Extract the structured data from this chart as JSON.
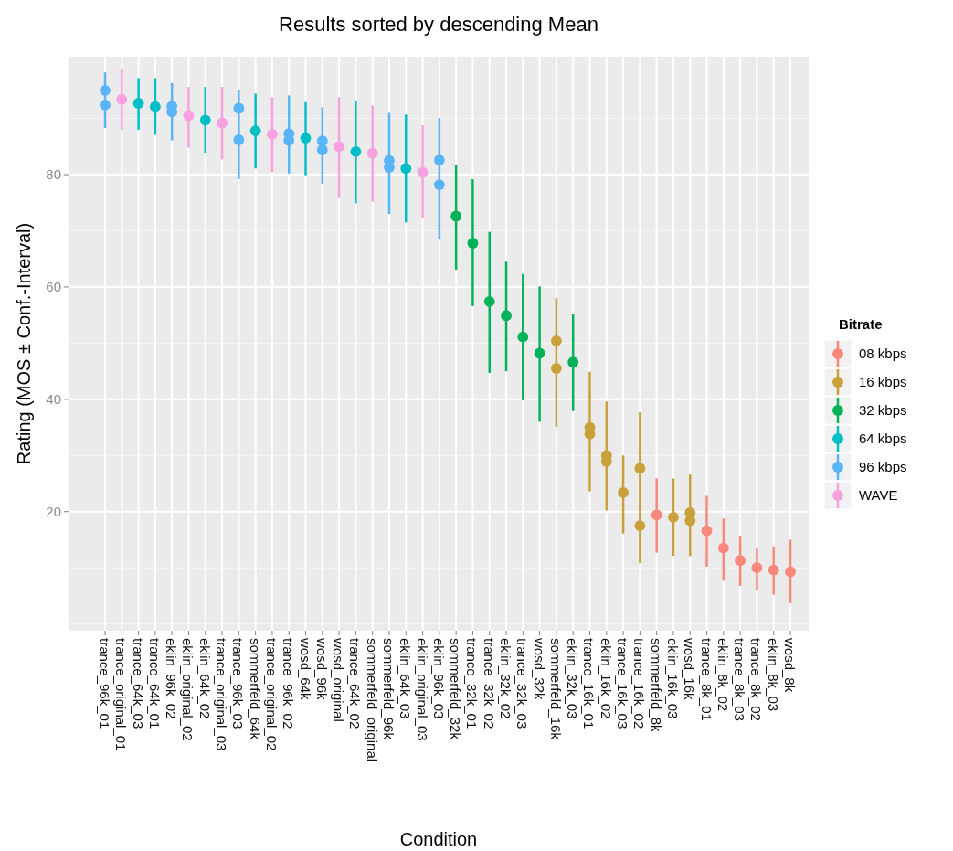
{
  "chart_data": {
    "type": "scatter",
    "title": "Results sorted by descending Mean",
    "xlabel": "Condition",
    "ylabel": "Rating (MOS ± Conf.-Interval)",
    "legend_title": "Bitrate",
    "legend": "right",
    "grid": true,
    "marker": "circle",
    "ylim": [
      -1.2,
      101
    ],
    "yticks": [
      20,
      40,
      60,
      80
    ],
    "categories": [
      "trance_96k_01",
      "trance_original_01",
      "trance_64k_03",
      "trance_64k_01",
      "eklin_96k_02",
      "eklin_original_02",
      "eklin_64k_02",
      "trance_original_03",
      "trance_96k_03",
      "sommerfeld_64k",
      "trance_original_02",
      "trance_96k_02",
      "wosd_64k",
      "wosd_96k",
      "wosd_original",
      "trance_64k_02",
      "sommerfeld_original",
      "sommerfeld_96k",
      "eklin_64k_03",
      "eklin_original_03",
      "eklin_96k_03",
      "sommerfeld_32k",
      "trance_32k_01",
      "trance_32k_02",
      "eklin_32k_02",
      "trance_32k_03",
      "wosd_32k",
      "sommerfeld_16k",
      "eklin_32k_03",
      "trance_16k_01",
      "eklin_16k_02",
      "trance_16k_03",
      "trance_16k_02",
      "sommerfeld_8k",
      "eklin_16k_03",
      "wosd_16k",
      "trance_8k_01",
      "eklin_8k_02",
      "trance_8k_03",
      "trance_8k_02",
      "eklin_8k_03",
      "wosd_8k"
    ],
    "series": [
      {
        "name": "08 kbps",
        "color": "#f8877c",
        "values": [
          null,
          null,
          null,
          null,
          null,
          null,
          null,
          null,
          null,
          null,
          null,
          null,
          null,
          null,
          null,
          null,
          null,
          null,
          null,
          null,
          null,
          null,
          null,
          null,
          null,
          null,
          null,
          null,
          null,
          null,
          null,
          null,
          null,
          19.4,
          null,
          null,
          16.6,
          13.5,
          11.3,
          10.0,
          9.6,
          9.3
        ],
        "errors": [
          null,
          null,
          null,
          null,
          null,
          null,
          null,
          null,
          null,
          null,
          null,
          null,
          null,
          null,
          null,
          null,
          null,
          null,
          null,
          null,
          null,
          null,
          null,
          null,
          null,
          null,
          null,
          null,
          null,
          null,
          null,
          null,
          null,
          [
            12.7,
            25.9
          ],
          null,
          null,
          [
            10.2,
            22.8
          ],
          [
            7.7,
            18.8
          ],
          [
            6.8,
            15.7
          ],
          [
            6.1,
            13.4
          ],
          [
            5.2,
            13.8
          ],
          [
            3.7,
            15.0
          ]
        ]
      },
      {
        "name": "16 kbps",
        "color": "#c9a13a",
        "values": [
          null,
          null,
          null,
          null,
          null,
          null,
          null,
          null,
          null,
          null,
          null,
          null,
          null,
          null,
          null,
          null,
          null,
          null,
          null,
          null,
          null,
          null,
          null,
          null,
          null,
          null,
          null,
          50.4,
          null,
          35.0,
          30.0,
          23.4,
          27.7,
          null,
          19.0,
          19.8,
          null,
          null,
          null,
          null,
          null,
          null
        ],
        "errors": [
          null,
          null,
          null,
          null,
          null,
          null,
          null,
          null,
          null,
          null,
          null,
          null,
          null,
          null,
          null,
          null,
          null,
          null,
          null,
          null,
          null,
          null,
          null,
          null,
          null,
          null,
          null,
          [
            35.1,
            58.0
          ],
          null,
          [
            23.6,
            44.9
          ],
          [
            20.2,
            39.6
          ],
          [
            16.1,
            30.0
          ],
          [
            10.8,
            37.7
          ],
          null,
          [
            12.1,
            25.9
          ],
          [
            12.1,
            26.6
          ],
          null,
          null,
          null,
          null,
          null,
          null
        ]
      },
      {
        "name": "32 kbps",
        "color": "#00b35a",
        "values": [
          null,
          null,
          null,
          null,
          null,
          null,
          null,
          null,
          null,
          null,
          null,
          null,
          null,
          null,
          null,
          null,
          null,
          null,
          null,
          null,
          null,
          72.6,
          67.8,
          57.4,
          54.9,
          51.1,
          48.2,
          null,
          46.6,
          null,
          null,
          null,
          null,
          null,
          null,
          null,
          null,
          null,
          null,
          null,
          null,
          null
        ],
        "errors": [
          null,
          null,
          null,
          null,
          null,
          null,
          null,
          null,
          null,
          null,
          null,
          null,
          null,
          null,
          null,
          null,
          null,
          null,
          null,
          null,
          null,
          [
            63.1,
            81.7
          ],
          [
            56.6,
            79.2
          ],
          [
            44.7,
            69.8
          ],
          [
            45.0,
            64.5
          ],
          [
            39.8,
            62.3
          ],
          [
            36.0,
            60.1
          ],
          null,
          [
            37.9,
            55.2
          ],
          null,
          null,
          null,
          null,
          null,
          null,
          null,
          null,
          null,
          null,
          null,
          null,
          null
        ]
      },
      {
        "name": "64 kbps",
        "color": "#00bfc4",
        "values": [
          null,
          null,
          92.7,
          92.1,
          null,
          null,
          89.7,
          null,
          null,
          87.8,
          null,
          null,
          86.5,
          null,
          null,
          84.1,
          null,
          null,
          81.1,
          null,
          null,
          null,
          null,
          null,
          null,
          null,
          null,
          null,
          null,
          null,
          null,
          null,
          null,
          null,
          null,
          null,
          null,
          null,
          null,
          null,
          null,
          null
        ],
        "errors": [
          null,
          null,
          [
            88.0,
            97.2
          ],
          [
            87.1,
            97.2
          ],
          null,
          null,
          [
            83.9,
            95.6
          ],
          null,
          null,
          [
            81.1,
            94.4
          ],
          null,
          null,
          [
            79.9,
            92.9
          ],
          null,
          null,
          [
            74.9,
            93.2
          ],
          null,
          null,
          [
            71.5,
            90.7
          ],
          null,
          null,
          null,
          null,
          null,
          null,
          null,
          null,
          null,
          null,
          null,
          null,
          null,
          null,
          null,
          null,
          null,
          null,
          null,
          null,
          null,
          null,
          null
        ]
      },
      {
        "name": "96 kbps",
        "color": "#5ab4f8",
        "values": [
          95.0,
          null,
          null,
          null,
          92.2,
          null,
          null,
          null,
          91.8,
          null,
          null,
          87.3,
          null,
          86.0,
          null,
          null,
          null,
          82.5,
          null,
          null,
          82.6,
          null,
          null,
          null,
          null,
          null,
          null,
          null,
          null,
          null,
          null,
          null,
          null,
          null,
          null,
          null,
          null,
          null,
          null,
          null,
          null,
          null
        ],
        "errors": [
          [
            88.3,
            98.2
          ],
          null,
          null,
          null,
          [
            86.1,
            96.3
          ],
          null,
          null,
          null,
          [
            79.2,
            95.0
          ],
          null,
          null,
          [
            80.2,
            94.1
          ],
          null,
          [
            78.4,
            92.0
          ],
          null,
          null,
          null,
          [
            73.0,
            91.0
          ],
          null,
          null,
          [
            68.4,
            90.1
          ],
          null,
          null,
          null,
          null,
          null,
          null,
          null,
          null,
          null,
          null,
          null,
          null,
          null,
          null,
          null,
          null,
          null,
          null,
          null,
          null,
          null
        ]
      },
      {
        "name": "WAVE",
        "color": "#f7a1e1",
        "values": [
          null,
          93.4,
          null,
          null,
          null,
          90.5,
          null,
          89.2,
          null,
          null,
          87.2,
          null,
          null,
          null,
          85.0,
          null,
          83.8,
          null,
          null,
          80.4,
          null,
          null,
          null,
          null,
          null,
          null,
          null,
          null,
          null,
          null,
          null,
          null,
          null,
          null,
          null,
          null,
          null,
          null,
          null,
          null,
          null,
          null
        ],
        "errors": [
          null,
          [
            88.0,
            98.8
          ],
          null,
          null,
          null,
          [
            84.8,
            95.6
          ],
          null,
          [
            82.7,
            95.6
          ],
          null,
          null,
          [
            80.5,
            93.8
          ],
          null,
          null,
          null,
          [
            75.8,
            93.8
          ],
          null,
          [
            75.2,
            92.3
          ],
          null,
          null,
          [
            72.2,
            88.8
          ],
          null,
          null,
          null,
          null,
          null,
          null,
          null,
          null,
          null,
          null,
          null,
          null,
          null,
          null,
          null,
          null,
          null,
          null,
          null,
          null,
          null,
          null
        ]
      },
      {
        "color": "#5ab4f8",
        "values": [
          92.4,
          null,
          null,
          null,
          91.2,
          null,
          null,
          null,
          86.2,
          null,
          null,
          86.1,
          null,
          84.4,
          null,
          null,
          null,
          81.3,
          null,
          null,
          78.2,
          null,
          null,
          null,
          null,
          null,
          null,
          null,
          null,
          null,
          null,
          null,
          null,
          null,
          null,
          null,
          null,
          null,
          null,
          null,
          null,
          null
        ]
      },
      {
        "color": "#c9a13a",
        "values": [
          null,
          null,
          null,
          null,
          null,
          null,
          null,
          null,
          null,
          null,
          null,
          null,
          null,
          null,
          null,
          null,
          null,
          null,
          null,
          null,
          null,
          null,
          null,
          null,
          null,
          null,
          null,
          45.5,
          null,
          33.8,
          28.9,
          null,
          17.5,
          null,
          null,
          18.4,
          null,
          null,
          null,
          null,
          null,
          null
        ]
      }
    ]
  }
}
